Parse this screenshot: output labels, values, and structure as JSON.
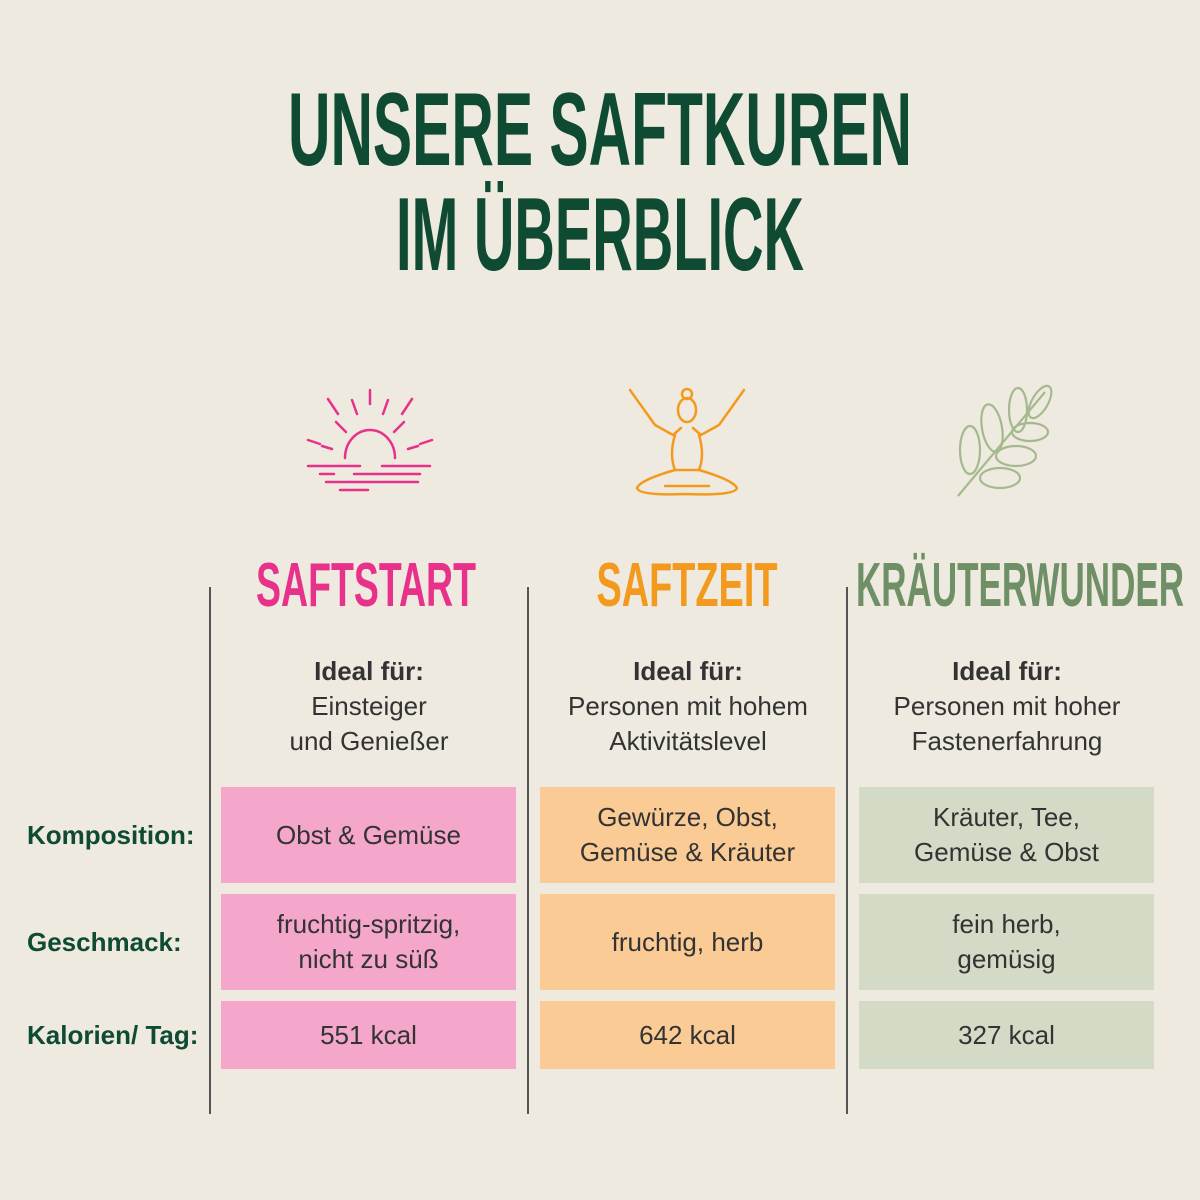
{
  "title": {
    "line1": "UNSERE SAFTKUREN",
    "line2": "IM ÜBERBLICK"
  },
  "colors": {
    "background": "#eeeadf",
    "title": "#0f4a33",
    "pink": "#e8318a",
    "orange": "#f39a1e",
    "green": "#6f8f66",
    "pink_cell": "#f4a7cb",
    "orange_cell": "#fbcb96",
    "green_cell": "#d3dbc7"
  },
  "row_labels": [
    "Komposition:",
    "Geschmack:",
    "Kalorien/ Tag:"
  ],
  "columns": [
    {
      "name": "SAFTSTART",
      "icon": "sunrise-icon",
      "ideal_label": "Ideal für:",
      "ideal_text": [
        "Einsteiger",
        "und Genießer"
      ],
      "komposition": [
        "Obst & Gemüse"
      ],
      "geschmack": [
        "fruchtig-spritzig,",
        "nicht zu süß"
      ],
      "kalorien": "551 kcal"
    },
    {
      "name": "SAFTZEIT",
      "icon": "yoga-icon",
      "ideal_label": "Ideal für:",
      "ideal_text": [
        "Personen mit hohem",
        "Aktivitätslevel"
      ],
      "komposition": [
        "Gewürze, Obst,",
        "Gemüse & Kräuter"
      ],
      "geschmack": [
        "fruchtig, herb"
      ],
      "kalorien": "642 kcal"
    },
    {
      "name": "KRÄUTERWUNDER",
      "icon": "herb-branch-icon",
      "ideal_label": "Ideal für:",
      "ideal_text": [
        "Personen mit hoher",
        "Fastenerfahrung"
      ],
      "komposition": [
        "Kräuter, Tee,",
        "Gemüse & Obst"
      ],
      "geschmack": [
        "fein herb,",
        "gemüsig"
      ],
      "kalorien": "327 kcal"
    }
  ]
}
